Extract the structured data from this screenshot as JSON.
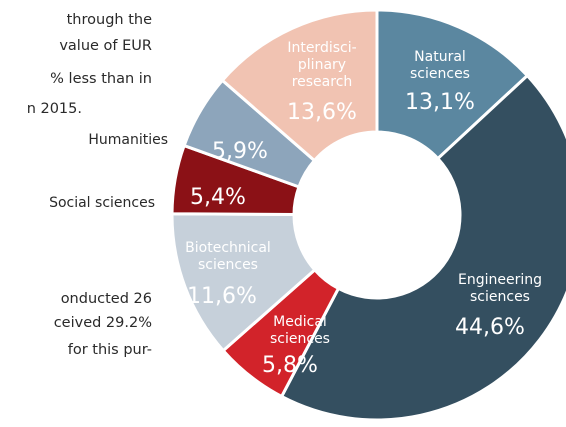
{
  "text_fragments": [
    "through the",
    "value of EUR",
    "% less than in",
    "n 2015.",
    "onducted  26",
    "ceived 29.2%",
    "for this pur-"
  ],
  "chart_data": {
    "type": "donut",
    "categories": [
      "Natural\nsciences",
      "Engineering\nsciences",
      "Medical\nsciences",
      "Biotechnical\nsciences",
      "Social sciences",
      "Humanities",
      "Interdisci-\nplinary\nresearch"
    ],
    "values": [
      13.1,
      44.6,
      5.8,
      11.6,
      5.4,
      5.9,
      13.6
    ],
    "value_labels": [
      "13,1%",
      "44,6%",
      "5,8%",
      "11,6%",
      "5,4%",
      "5,9%",
      "13,6%"
    ],
    "colors": [
      "#5b87a0",
      "#344f60",
      "#d2232a",
      "#c6d0da",
      "#8b1116",
      "#8da5bb",
      "#f1c3b2"
    ]
  }
}
